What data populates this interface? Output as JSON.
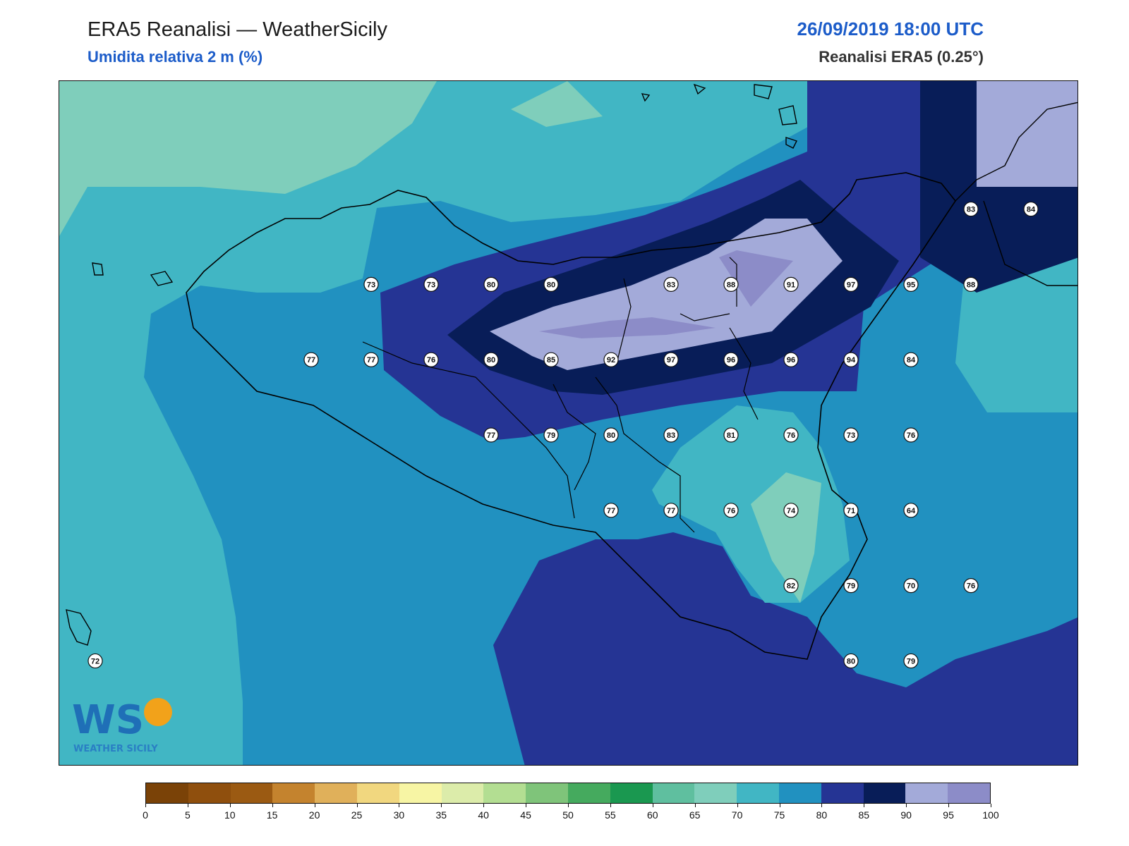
{
  "header": {
    "title": "ERA5 Reanalisi — WeatherSicily",
    "subtitle": "Umidita relativa 2 m (%)",
    "datetime": "26/09/2019 18:00 UTC",
    "source": "Reanalisi ERA5 (0.25°)"
  },
  "logo": {
    "text": "WEATHER SICILY",
    "letters": "WS"
  },
  "colorbar": {
    "ticks": [
      "0",
      "5",
      "10",
      "15",
      "20",
      "25",
      "30",
      "35",
      "40",
      "45",
      "50",
      "55",
      "60",
      "65",
      "70",
      "75",
      "80",
      "85",
      "90",
      "95",
      "100"
    ],
    "colors": [
      "#7a4207",
      "#8f4f0d",
      "#9b5a12",
      "#c4832e",
      "#e0b05a",
      "#f1d77f",
      "#f7f5a4",
      "#dcecaa",
      "#b3de92",
      "#7fc47a",
      "#45aa5e",
      "#1a9850",
      "#5fbf9f",
      "#7fcebb",
      "#41b6c4",
      "#2191c0",
      "#253494",
      "#081d58",
      "#a3aad9",
      "#8c8cc8"
    ]
  },
  "stations": [
    {
      "v": "73",
      "lon": 12.6,
      "lat": 38.3
    },
    {
      "v": "73",
      "lon": 13.1,
      "lat": 38.3
    },
    {
      "v": "80",
      "lon": 13.6,
      "lat": 38.3
    },
    {
      "v": "80",
      "lon": 14.1,
      "lat": 38.3
    },
    {
      "v": "83",
      "lon": 15.1,
      "lat": 38.3
    },
    {
      "v": "88",
      "lon": 15.6,
      "lat": 38.3
    },
    {
      "v": "91",
      "lon": 16.1,
      "lat": 38.3
    },
    {
      "v": "97",
      "lon": 16.6,
      "lat": 38.3
    },
    {
      "v": "95",
      "lon": 17.1,
      "lat": 38.3
    },
    {
      "v": "88",
      "lon": 17.6,
      "lat": 38.3
    },
    {
      "v": "83",
      "lon": 17.6,
      "lat": 38.8
    },
    {
      "v": "84",
      "lon": 18.1,
      "lat": 38.8
    },
    {
      "v": "77",
      "lon": 12.1,
      "lat": 37.8
    },
    {
      "v": "77",
      "lon": 12.6,
      "lat": 37.8
    },
    {
      "v": "76",
      "lon": 13.1,
      "lat": 37.8
    },
    {
      "v": "80",
      "lon": 13.6,
      "lat": 37.8
    },
    {
      "v": "85",
      "lon": 14.1,
      "lat": 37.8
    },
    {
      "v": "92",
      "lon": 14.6,
      "lat": 37.8
    },
    {
      "v": "97",
      "lon": 15.1,
      "lat": 37.8
    },
    {
      "v": "96",
      "lon": 15.6,
      "lat": 37.8
    },
    {
      "v": "96",
      "lon": 16.1,
      "lat": 37.8
    },
    {
      "v": "94",
      "lon": 16.6,
      "lat": 37.8
    },
    {
      "v": "84",
      "lon": 17.1,
      "lat": 37.8
    },
    {
      "v": "77",
      "lon": 13.6,
      "lat": 37.3
    },
    {
      "v": "79",
      "lon": 14.1,
      "lat": 37.3
    },
    {
      "v": "80",
      "lon": 14.6,
      "lat": 37.3
    },
    {
      "v": "83",
      "lon": 15.1,
      "lat": 37.3
    },
    {
      "v": "81",
      "lon": 15.6,
      "lat": 37.3
    },
    {
      "v": "76",
      "lon": 16.1,
      "lat": 37.3
    },
    {
      "v": "73",
      "lon": 16.6,
      "lat": 37.3
    },
    {
      "v": "76",
      "lon": 17.1,
      "lat": 37.3
    },
    {
      "v": "77",
      "lon": 14.6,
      "lat": 36.8
    },
    {
      "v": "77",
      "lon": 15.1,
      "lat": 36.8
    },
    {
      "v": "76",
      "lon": 15.6,
      "lat": 36.8
    },
    {
      "v": "74",
      "lon": 16.1,
      "lat": 36.8
    },
    {
      "v": "71",
      "lon": 16.6,
      "lat": 36.8
    },
    {
      "v": "64",
      "lon": 17.1,
      "lat": 36.8
    },
    {
      "v": "82",
      "lon": 16.1,
      "lat": 36.3
    },
    {
      "v": "79",
      "lon": 16.6,
      "lat": 36.3
    },
    {
      "v": "70",
      "lon": 17.1,
      "lat": 36.3
    },
    {
      "v": "76",
      "lon": 17.6,
      "lat": 36.3
    },
    {
      "v": "80",
      "lon": 16.6,
      "lat": 35.8
    },
    {
      "v": "79",
      "lon": 17.1,
      "lat": 35.8
    },
    {
      "v": "72",
      "lon": 10.3,
      "lat": 35.8
    }
  ]
}
